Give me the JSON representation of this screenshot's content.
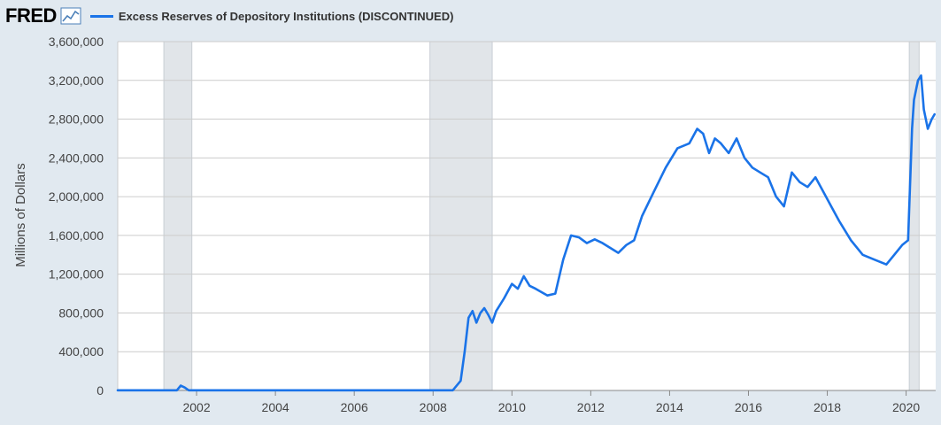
{
  "brand": {
    "logo_text": "FRED",
    "logo_icon": "chart-line-icon"
  },
  "colors": {
    "series": "#1a73e8",
    "background": "#e1e9f0",
    "plot_bg": "#ffffff",
    "recession": "#e1e5e9",
    "grid": "#cccccc"
  },
  "chart_data": {
    "type": "line",
    "title": "",
    "xlabel": "",
    "ylabel": "Millions of Dollars",
    "ylim": [
      0,
      3600000
    ],
    "xlim": [
      2000.0,
      2020.75
    ],
    "grid": true,
    "legend_position": "top-left",
    "y_ticks": [
      0,
      400000,
      800000,
      1200000,
      1600000,
      2000000,
      2400000,
      2800000,
      3200000,
      3600000
    ],
    "y_tick_labels": [
      "0",
      "400,000",
      "800,000",
      "1,200,000",
      "1,600,000",
      "2,000,000",
      "2,400,000",
      "2,800,000",
      "3,200,000",
      "3,600,000"
    ],
    "x_ticks": [
      2002,
      2004,
      2006,
      2008,
      2010,
      2012,
      2014,
      2016,
      2018,
      2020
    ],
    "x_tick_labels": [
      "2002",
      "2004",
      "2006",
      "2008",
      "2010",
      "2012",
      "2014",
      "2016",
      "2018",
      "2020"
    ],
    "recessions": [
      [
        2001.17,
        2001.88
      ],
      [
        2007.92,
        2009.5
      ],
      [
        2020.08,
        2020.33
      ]
    ],
    "series": [
      {
        "name": "Excess Reserves of Depository Institutions (DISCONTINUED)",
        "x": [
          2000.0,
          2001.5,
          2001.6,
          2001.7,
          2001.8,
          2003.0,
          2005.0,
          2007.0,
          2008.5,
          2008.7,
          2008.8,
          2008.9,
          2009.0,
          2009.1,
          2009.2,
          2009.3,
          2009.4,
          2009.5,
          2009.6,
          2009.8,
          2010.0,
          2010.15,
          2010.3,
          2010.45,
          2010.6,
          2010.9,
          2011.1,
          2011.3,
          2011.5,
          2011.7,
          2011.9,
          2012.1,
          2012.3,
          2012.5,
          2012.7,
          2012.9,
          2013.1,
          2013.3,
          2013.6,
          2013.9,
          2014.2,
          2014.5,
          2014.7,
          2014.85,
          2015.0,
          2015.15,
          2015.3,
          2015.5,
          2015.7,
          2015.9,
          2016.1,
          2016.3,
          2016.5,
          2016.7,
          2016.9,
          2017.1,
          2017.3,
          2017.5,
          2017.7,
          2017.9,
          2018.1,
          2018.3,
          2018.6,
          2018.9,
          2019.2,
          2019.5,
          2019.7,
          2019.9,
          2020.05,
          2020.15,
          2020.2,
          2020.3,
          2020.38,
          2020.45,
          2020.55,
          2020.65,
          2020.72
        ],
        "values": [
          2000,
          2000,
          50000,
          30000,
          2000,
          2000,
          2000,
          2000,
          2000,
          100000,
          400000,
          750000,
          820000,
          700000,
          800000,
          850000,
          780000,
          700000,
          820000,
          950000,
          1100000,
          1050000,
          1180000,
          1080000,
          1050000,
          980000,
          1000000,
          1350000,
          1600000,
          1580000,
          1520000,
          1560000,
          1520000,
          1470000,
          1420000,
          1500000,
          1550000,
          1800000,
          2050000,
          2300000,
          2500000,
          2550000,
          2700000,
          2650000,
          2450000,
          2600000,
          2550000,
          2450000,
          2600000,
          2400000,
          2300000,
          2250000,
          2200000,
          2000000,
          1900000,
          2250000,
          2150000,
          2100000,
          2200000,
          2050000,
          1900000,
          1750000,
          1550000,
          1400000,
          1350000,
          1300000,
          1400000,
          1500000,
          1550000,
          2700000,
          3000000,
          3200000,
          3250000,
          2900000,
          2700000,
          2800000,
          2850000
        ]
      }
    ]
  }
}
